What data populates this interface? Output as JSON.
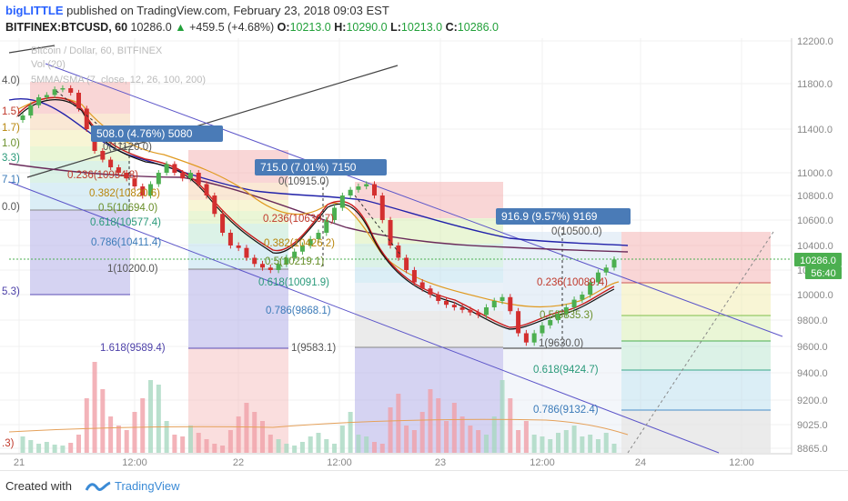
{
  "header": {
    "author": "bigLITTLE",
    "published": "published on TradingView.com, February 23, 2018 09:03 EST",
    "symbol": "BITFINEX:BTCUSD, 60",
    "last": "10286.0",
    "change": "+459.5 (+4.68%)",
    "o_label": "O:",
    "o_value": "10213.0",
    "h_label": "H:",
    "h_value": "10290.0",
    "l_label": "L:",
    "l_value": "10213.0",
    "c_label": "C:",
    "c_value": "10286.0"
  },
  "legend": {
    "line1": "Bitcoin / Dollar, 60, BITFINEX",
    "line2": "Vol (20)",
    "line3": "5MMA/SMA (7, close, 12, 26, 100, 200)"
  },
  "price_badge": {
    "value": "10286.0",
    "countdown": "56:40",
    "color": "#4caf50"
  },
  "measure_labels": [
    {
      "text": "508.0 (4.76%) 5080"
    },
    {
      "text": "715.0 (7.01%) 7150"
    },
    {
      "text": "916.9 (9.57%) 9169"
    }
  ],
  "footer": {
    "created": "Created with",
    "brand": "TradingView"
  },
  "chart_data": {
    "type": "candlestick",
    "title": "Bitcoin / Dollar, 60, BITFINEX",
    "ylim": [
      8800,
      12250
    ],
    "y_ticks": [
      12200,
      11800,
      11400,
      11000,
      10800,
      10600,
      10400,
      10200,
      10000,
      9800,
      9600,
      9400,
      9200,
      9025,
      8865
    ],
    "y_tick_labels": [
      "12200.0",
      "11800.0",
      "11400.0",
      "11000.0",
      "10800.0",
      "10600.0",
      "10400.0",
      "10200.0",
      "10000.0",
      "9800.0",
      "9600.0",
      "9400.0",
      "9200.0",
      "9025.0",
      "8865.0"
    ],
    "x_ticks": [
      {
        "label": "21",
        "x": 21
      },
      {
        "label": "12:00",
        "x": 148
      },
      {
        "label": "22",
        "x": 262
      },
      {
        "label": "12:00",
        "x": 373
      },
      {
        "label": "23",
        "x": 484
      },
      {
        "label": "12:00",
        "x": 596
      },
      {
        "label": "24",
        "x": 704
      },
      {
        "label": "12:00",
        "x": 815
      }
    ],
    "grid": true,
    "fib_levels_left_cut": [
      {
        "text": "4.0)",
        "y": 92
      },
      {
        "text": "1.5)",
        "y": 126
      },
      {
        "text": "1.7)",
        "y": 144
      },
      {
        "text": "1.0)",
        "y": 161
      },
      {
        "text": "3.3)",
        "y": 177
      },
      {
        "text": "7.1)",
        "y": 201
      },
      {
        "text": "0.0)",
        "y": 231
      },
      {
        "text": "5.3)",
        "y": 324
      },
      {
        "text": ".3)",
        "y": 491
      }
    ],
    "fib_retracements": [
      {
        "levels": [
          {
            "label": "0(11120.0)",
            "price": 11120.0
          },
          {
            "label": "0.236(10954.8)",
            "price": 10954.8
          },
          {
            "label": "0.382(10820.6)",
            "price": 10820.6
          },
          {
            "label": "0.5(10694.0)",
            "price": 10694.0
          },
          {
            "label": "0.618(10577.4)",
            "price": 10577.4
          },
          {
            "label": "0.786(10411.4)",
            "price": 10411.4
          },
          {
            "label": "1(10200.0)",
            "price": 10200.0
          },
          {
            "label": "1.618(9589.4)",
            "price": 9589.4
          }
        ]
      },
      {
        "levels": [
          {
            "label": "0(10915.0)",
            "price": 10915.0
          },
          {
            "label": "0.236(10630.7)",
            "price": 10630.7
          },
          {
            "label": "0.382(10426.2)",
            "price": 10426.2
          },
          {
            "label": "0.5(10219.1)",
            "price": 10219.1
          },
          {
            "label": "0.618(10091.9)",
            "price": 10091.9
          },
          {
            "label": "0.786(9868.1)",
            "price": 9868.1
          },
          {
            "label": "1(9583.1)",
            "price": 9583.1
          }
        ]
      },
      {
        "levels": [
          {
            "label": "0(10500.0)",
            "price": 10500.0
          },
          {
            "label": "0.236(10089.4)",
            "price": 10089.4
          },
          {
            "label": "0.5(9835.3)",
            "price": 9835.3
          },
          {
            "label": "1(9630.0)",
            "price": 9630.0
          },
          {
            "label": "0.618(9424.7)",
            "price": 9424.7
          },
          {
            "label": "0.786(9132.4)",
            "price": 9132.4
          }
        ]
      }
    ],
    "series": [
      {
        "name": "BTCUSD 60",
        "candles_close": [
          11520,
          11610,
          11680,
          11700,
          11750,
          11760,
          11720,
          11580,
          11400,
          11200,
          11120,
          11050,
          11000,
          10950,
          10880,
          10800,
          10900,
          11000,
          11080,
          11000,
          10950,
          11000,
          10900,
          10800,
          10650,
          10500,
          10400,
          10380,
          10300,
          10250,
          10220,
          10200,
          10250,
          10300,
          10350,
          10400,
          10450,
          10500,
          10600,
          10700,
          10800,
          10850,
          10880,
          10900,
          10800,
          10600,
          10400,
          10300,
          10200,
          10100,
          10050,
          10000,
          9950,
          9920,
          9900,
          9880,
          9860,
          9840,
          9900,
          9950,
          9980,
          9870,
          9700,
          9630,
          9700,
          9760,
          9800,
          9850,
          9900,
          9960,
          10000,
          10100,
          10180,
          10220,
          10286
        ]
      }
    ]
  }
}
